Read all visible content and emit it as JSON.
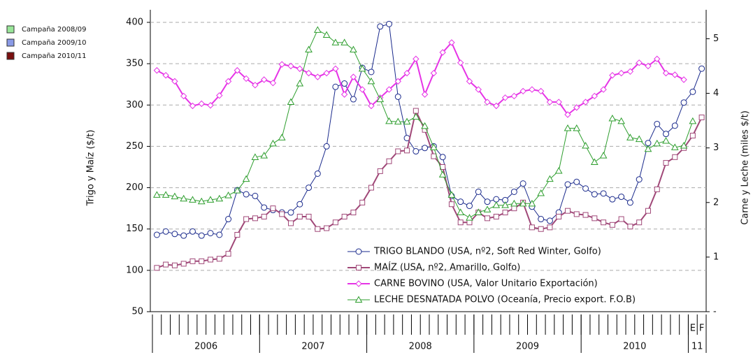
{
  "chart_data": {
    "type": "line",
    "y_axis_label": "Trigo y Maíz ($/t)",
    "y2_axis_label": "Carne y Leche (miles $/t)",
    "ylim": [
      50,
      400
    ],
    "yticks": [
      50,
      100,
      150,
      200,
      250,
      300,
      350,
      400
    ],
    "y2lim": [
      0,
      5.3
    ],
    "y2ticks": [
      {
        "value": 0,
        "label": "-"
      },
      1,
      2,
      3,
      4,
      5
    ],
    "grid": true,
    "categories": [
      null,
      null,
      null,
      null,
      null,
      null,
      null,
      null,
      null,
      null,
      null,
      null,
      null,
      null,
      null,
      null,
      null,
      null,
      null,
      null,
      null,
      null,
      null,
      null,
      null,
      null,
      null,
      null,
      null,
      null,
      null,
      null,
      null,
      null,
      null,
      null,
      null,
      null,
      null,
      null,
      null,
      null,
      null,
      null,
      null,
      null,
      null,
      null,
      null,
      null,
      null,
      null,
      null,
      null,
      null,
      null,
      null,
      null,
      null,
      null,
      "E",
      "F"
    ],
    "year_groups": [
      {
        "label": "2006",
        "span": 12
      },
      {
        "label": "2007",
        "span": 12
      },
      {
        "label": "2008",
        "span": 12
      },
      {
        "label": "2009",
        "span": 12
      },
      {
        "label": "2010",
        "span": 12
      },
      {
        "label": "11",
        "span": 2
      }
    ],
    "campaign_legend": [
      {
        "label": "Campaña 2008/09",
        "color": "#99e699"
      },
      {
        "label": "Campaña 2009/10",
        "color": "#8a9ae6"
      },
      {
        "label": "Campaña 2010/11",
        "color": "#7a1010"
      }
    ],
    "series": [
      {
        "name": "TRIGO BLANDO (USA, nº2, Soft Red Winter, Golfo)",
        "color": "#1a2a8c",
        "marker": "circle",
        "values": [
          143,
          147,
          144,
          142,
          147,
          142,
          145,
          143,
          162,
          197,
          192,
          190,
          176,
          173,
          170,
          170,
          180,
          200,
          217,
          250,
          322,
          326,
          307,
          345,
          340,
          395,
          398,
          310,
          260,
          244,
          248,
          250,
          237,
          190,
          183,
          178,
          195,
          183,
          186,
          185,
          195,
          205,
          177,
          162,
          160,
          170,
          204,
          207,
          199,
          192,
          193,
          186,
          189,
          182,
          210,
          254,
          277,
          265,
          275,
          303,
          316,
          344
        ]
      },
      {
        "name": "MAÍZ (USA, nº2, Amarillo, Golfo)",
        "color": "#a04878",
        "marker": "square",
        "values": [
          103,
          107,
          106,
          108,
          111,
          111,
          113,
          114,
          120,
          143,
          162,
          163,
          165,
          175,
          168,
          157,
          165,
          165,
          150,
          151,
          158,
          165,
          170,
          182,
          200,
          220,
          232,
          244,
          245,
          293,
          270,
          238,
          225,
          180,
          158,
          158,
          170,
          163,
          165,
          170,
          175,
          182,
          152,
          150,
          152,
          165,
          172,
          168,
          167,
          163,
          158,
          155,
          162,
          153,
          158,
          172,
          198,
          230,
          237,
          248,
          263,
          285
        ]
      },
      {
        "name": "CARNE BOVINO (USA, Valor Unitario Exportación)",
        "color": "#e633e6",
        "marker": "diamond",
        "axis": "y2",
        "values": [
          4.42,
          4.33,
          4.22,
          3.95,
          3.77,
          3.81,
          3.78,
          3.96,
          4.22,
          4.42,
          4.27,
          4.15,
          4.25,
          4.19,
          4.53,
          4.5,
          4.45,
          4.37,
          4.3,
          4.37,
          4.45,
          3.98,
          4.3,
          4.07,
          3.77,
          3.92,
          4.07,
          4.22,
          4.37,
          4.63,
          3.98,
          4.37,
          4.75,
          4.93,
          4.56,
          4.22,
          4.07,
          3.84,
          3.77,
          3.92,
          3.95,
          4.04,
          4.07,
          4.04,
          3.84,
          3.84,
          3.61,
          3.74,
          3.84,
          3.95,
          4.07,
          4.33,
          4.37,
          4.4,
          4.56,
          4.5,
          4.63,
          4.37,
          4.34,
          4.25,
          null,
          null
        ]
      },
      {
        "name": "LECHE DESNATADA POLVO (Oceanía, Precio export. F.O.B)",
        "color": "#2e9e2e",
        "marker": "triangle",
        "axis": "y2",
        "values": [
          2.14,
          2.14,
          2.11,
          2.07,
          2.05,
          2.02,
          2.05,
          2.07,
          2.13,
          2.22,
          2.43,
          2.83,
          2.86,
          3.08,
          3.19,
          3.84,
          4.18,
          4.8,
          5.16,
          5.07,
          4.93,
          4.93,
          4.8,
          4.45,
          4.22,
          3.89,
          3.49,
          3.48,
          3.48,
          3.57,
          3.4,
          3.01,
          2.51,
          2.14,
          1.82,
          1.72,
          1.82,
          1.87,
          1.95,
          1.95,
          1.98,
          1.98,
          1.98,
          2.17,
          2.43,
          2.58,
          3.36,
          3.36,
          3.04,
          2.74,
          2.86,
          3.54,
          3.49,
          3.19,
          3.16,
          2.98,
          3.08,
          3.13,
          3.01,
          3.04,
          3.49,
          null
        ]
      }
    ]
  }
}
